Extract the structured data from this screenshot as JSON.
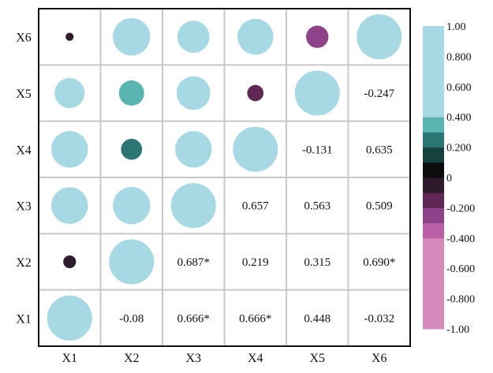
{
  "chart_data": {
    "type": "heatmap",
    "subtype": "correlation-matrix",
    "title": "",
    "xlabel": "",
    "ylabel": "",
    "variables": [
      "X1",
      "X2",
      "X3",
      "X4",
      "X5",
      "X6"
    ],
    "x_tick_labels": [
      "X1",
      "X2",
      "X3",
      "X4",
      "X5",
      "X6"
    ],
    "y_tick_labels_top_to_bottom": [
      "X6",
      "X5",
      "X4",
      "X3",
      "X2",
      "X1"
    ],
    "matrix": [
      [
        1.0,
        -0.08,
        0.666,
        0.666,
        0.448,
        -0.032
      ],
      [
        -0.08,
        1.0,
        0.687,
        0.219,
        0.315,
        0.69
      ],
      [
        0.666,
        0.687,
        1.0,
        0.657,
        0.563,
        0.509
      ],
      [
        0.666,
        0.219,
        0.657,
        1.0,
        -0.131,
        0.635
      ],
      [
        0.448,
        0.315,
        0.563,
        -0.131,
        1.0,
        -0.247
      ],
      [
        -0.032,
        0.69,
        0.509,
        0.635,
        -0.247,
        1.0
      ]
    ],
    "lower_triangle": "circles",
    "upper_triangle": "numbers",
    "cell_labels": [
      [
        "",
        "-0.08",
        "0.666*",
        "0.666*",
        "0.448",
        "-0.032"
      ],
      [
        "",
        "",
        "0.687*",
        "0.219",
        "0.315",
        "0.690*"
      ],
      [
        "",
        "",
        "",
        "0.657",
        "0.563",
        "0.509"
      ],
      [
        "",
        "",
        "",
        "",
        "-0.131",
        "0.635"
      ],
      [
        "",
        "",
        "",
        "",
        "",
        "-0.247"
      ],
      [
        "",
        "",
        "",
        "",
        "",
        ""
      ]
    ],
    "colorbar": {
      "range": [
        -1.0,
        1.0
      ],
      "tick_labels": [
        "-1.00",
        "-0.800",
        "-0.600",
        "-0.400",
        "-0.200",
        "0",
        "0.200",
        "0.400",
        "0.600",
        "0.800",
        "1.00"
      ],
      "bands": [
        {
          "from": -1.0,
          "to": -0.4,
          "color": "#d48bbb"
        },
        {
          "from": -0.4,
          "to": -0.3,
          "color": "#b95fa6"
        },
        {
          "from": -0.3,
          "to": -0.2,
          "color": "#8e4287"
        },
        {
          "from": -0.2,
          "to": -0.1,
          "color": "#5e2754"
        },
        {
          "from": -0.1,
          "to": 0.0,
          "color": "#2e1a2a"
        },
        {
          "from": 0.0,
          "to": 0.1,
          "color": "#0c0c0c"
        },
        {
          "from": 0.1,
          "to": 0.2,
          "color": "#17413f"
        },
        {
          "from": 0.2,
          "to": 0.3,
          "color": "#2b7572"
        },
        {
          "from": 0.3,
          "to": 0.4,
          "color": "#5ab5b1"
        },
        {
          "from": 0.4,
          "to": 1.0,
          "color": "#a6d9e3"
        }
      ]
    },
    "grid": true,
    "legend_position": "right"
  }
}
